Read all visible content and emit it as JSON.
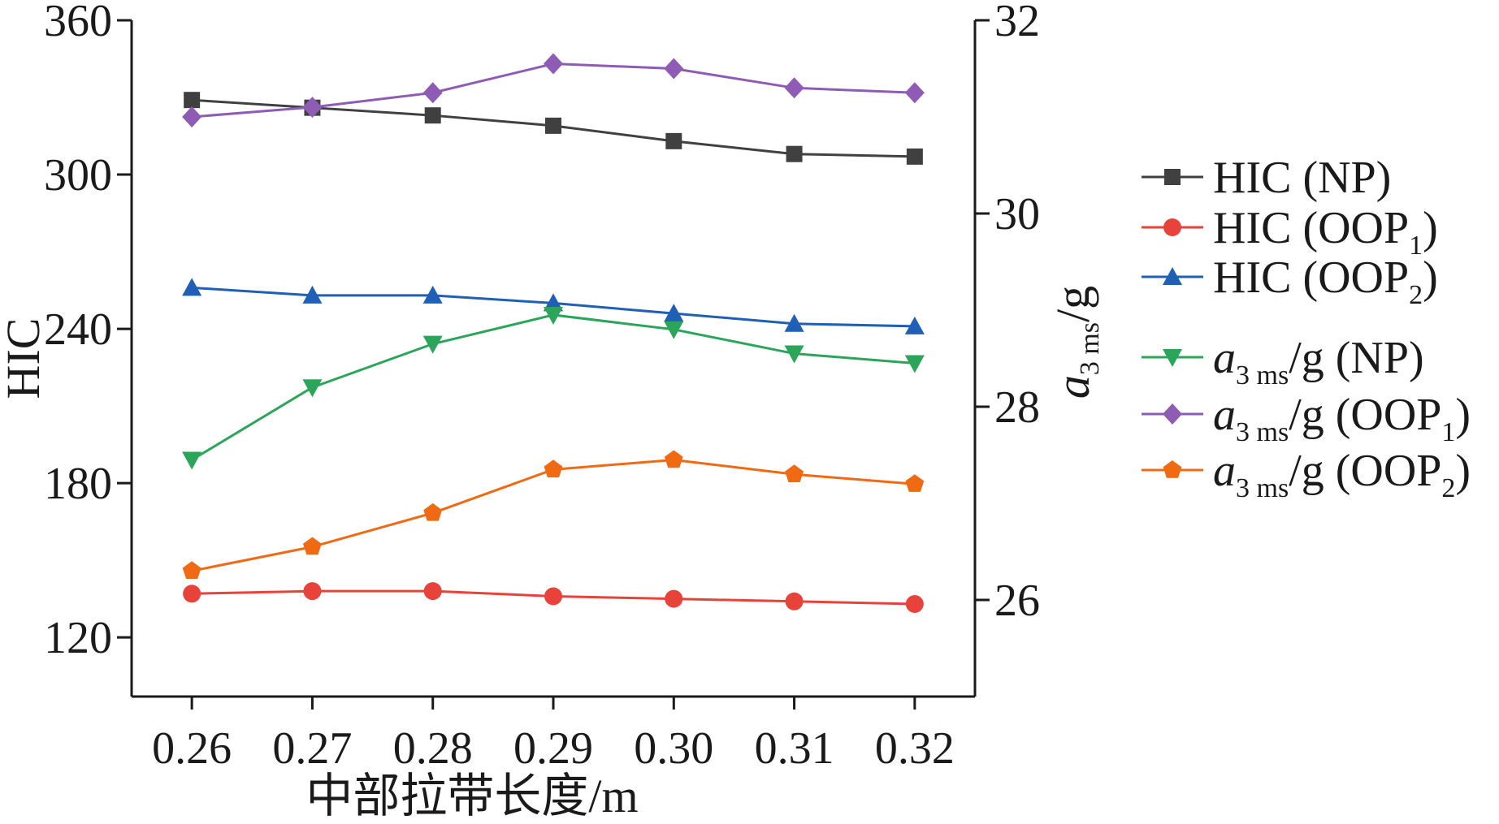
{
  "chart_data": {
    "type": "line",
    "categories": [
      "0.26",
      "0.27",
      "0.28",
      "0.29",
      "0.30",
      "0.31",
      "0.32"
    ],
    "x": [
      0.26,
      0.27,
      0.28,
      0.29,
      0.3,
      0.31,
      0.32
    ],
    "xlabel": "中部拉带长度/m",
    "ylabel_left": "HIC",
    "ylabel_right": {
      "main": "a",
      "sub": "3 ms",
      "tail": "/g"
    },
    "ylim_left": [
      97,
      360
    ],
    "ylim_right": [
      25,
      32
    ],
    "yticks_left": [
      "120",
      "180",
      "240",
      "300",
      "360"
    ],
    "yticks_right": [
      "26",
      "28",
      "30",
      "32"
    ],
    "xlim": [
      0.255,
      0.325
    ],
    "grid": false,
    "legend_position": "right",
    "series": [
      {
        "name": "HIC (NP)",
        "axis": "left",
        "color": "#404040",
        "marker": "square",
        "values": [
          329,
          326,
          323,
          319,
          313,
          308,
          307
        ]
      },
      {
        "name": "HIC (OOP1)",
        "name_main": "HIC (OOP",
        "name_sub": "1",
        "name_tail": ")",
        "axis": "left",
        "color": "#e8433a",
        "marker": "circle",
        "values": [
          137,
          138,
          138,
          136,
          135,
          134,
          133
        ]
      },
      {
        "name": "HIC (OOP2)",
        "name_main": "HIC (OOP",
        "name_sub": "2",
        "name_tail": ")",
        "axis": "left",
        "color": "#1f5fb5",
        "marker": "triangle-up",
        "values": [
          256,
          253,
          253,
          250,
          246,
          242,
          241
        ]
      },
      {
        "name": "a3 ms/g (NP)",
        "name_main": "a",
        "name_sub": "3 ms",
        "name_tail": "/g (NP)",
        "axis": "right",
        "color": "#2aa55a",
        "marker": "triangle-down",
        "values": [
          27.45,
          28.2,
          28.65,
          28.95,
          28.8,
          28.55,
          28.45
        ]
      },
      {
        "name": "a3 ms/g (OOP1)",
        "name_main": "a",
        "name_sub": "3 ms",
        "name_tail": "/g (OOP",
        "name_sub2": "1",
        "name_tail2": ")",
        "axis": "right",
        "color": "#8e5bb5",
        "marker": "diamond",
        "values": [
          31.0,
          31.1,
          31.25,
          31.55,
          31.5,
          31.3,
          31.25
        ]
      },
      {
        "name": "a3 ms/g (OOP2)",
        "name_main": "a",
        "name_sub": "3 ms",
        "name_tail": "/g (OOP",
        "name_sub2": "2",
        "name_tail2": ")",
        "axis": "right",
        "color": "#ef6a12",
        "marker": "pentagon",
        "values": [
          26.3,
          26.55,
          26.9,
          27.35,
          27.45,
          27.3,
          27.2
        ]
      }
    ]
  }
}
